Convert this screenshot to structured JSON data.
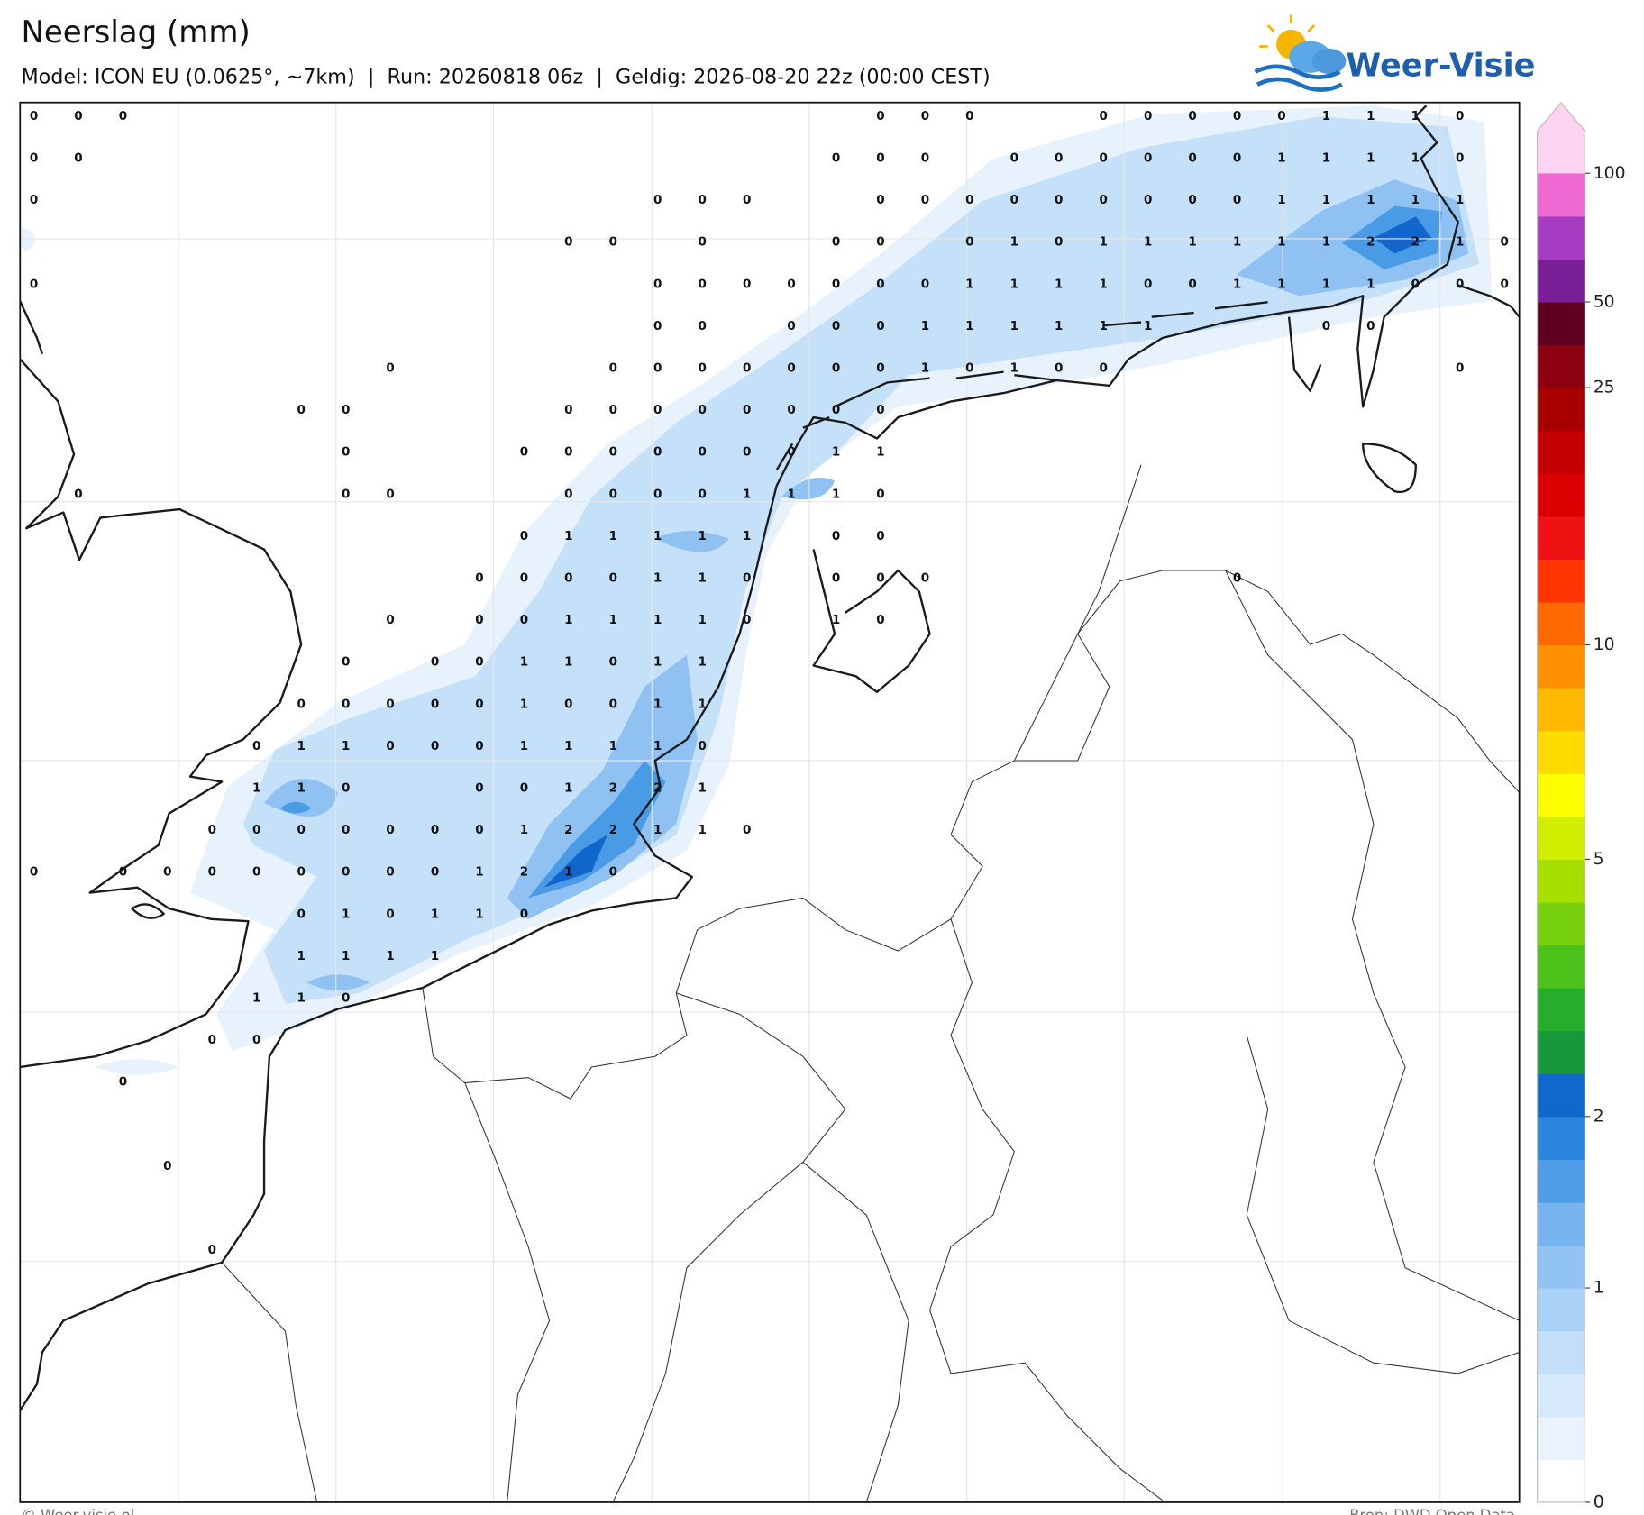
{
  "header": {
    "title": "Neerslag (mm)",
    "subtitle": "Model: ICON EU (0.0625°, ~7km)  |  Run: 20260818 06z  |  Geldig: 2026-08-20 22z (00:00 CEST)",
    "logo": "Weer-Visie"
  },
  "map": {
    "grid_values": [
      [
        0,
        0,
        0,
        null,
        null,
        null,
        null,
        null,
        null,
        null,
        null,
        null,
        null,
        null,
        null,
        null,
        null,
        null,
        null,
        0,
        0,
        0,
        null,
        null,
        0,
        0,
        0,
        0,
        0,
        1,
        1,
        1,
        0,
        null
      ],
      [
        0,
        0,
        null,
        null,
        null,
        null,
        null,
        null,
        null,
        null,
        null,
        null,
        null,
        null,
        null,
        null,
        null,
        null,
        0,
        0,
        0,
        null,
        0,
        0,
        0,
        0,
        0,
        0,
        1,
        1,
        1,
        1,
        0,
        null
      ],
      [
        0,
        null,
        null,
        null,
        null,
        null,
        null,
        null,
        null,
        null,
        null,
        null,
        null,
        null,
        0,
        0,
        0,
        null,
        null,
        0,
        0,
        0,
        0,
        0,
        0,
        0,
        0,
        0,
        1,
        1,
        1,
        1,
        1,
        null
      ],
      [
        null,
        null,
        null,
        null,
        null,
        null,
        null,
        null,
        null,
        null,
        null,
        null,
        0,
        0,
        null,
        0,
        null,
        null,
        0,
        0,
        null,
        0,
        1,
        0,
        1,
        1,
        1,
        1,
        1,
        1,
        2,
        2,
        1,
        0
      ],
      [
        0,
        null,
        null,
        null,
        null,
        null,
        null,
        null,
        null,
        null,
        null,
        null,
        null,
        null,
        0,
        0,
        0,
        0,
        0,
        0,
        0,
        1,
        1,
        1,
        1,
        0,
        0,
        1,
        1,
        1,
        1,
        0,
        0,
        0
      ],
      [
        null,
        null,
        null,
        null,
        null,
        null,
        null,
        null,
        null,
        null,
        null,
        null,
        null,
        null,
        0,
        0,
        null,
        0,
        0,
        0,
        1,
        1,
        1,
        1,
        1,
        1,
        null,
        null,
        null,
        0,
        0,
        null,
        null,
        null
      ],
      [
        null,
        null,
        null,
        null,
        null,
        null,
        null,
        null,
        0,
        null,
        null,
        null,
        null,
        0,
        0,
        0,
        0,
        0,
        0,
        0,
        1,
        0,
        1,
        0,
        0,
        null,
        null,
        null,
        null,
        null,
        null,
        null,
        0,
        null
      ],
      [
        null,
        null,
        null,
        null,
        null,
        null,
        0,
        0,
        null,
        null,
        null,
        null,
        0,
        0,
        0,
        0,
        0,
        0,
        0,
        0,
        null,
        null,
        null,
        null,
        null,
        null,
        null,
        null,
        null,
        null,
        null,
        null,
        null,
        null
      ],
      [
        null,
        null,
        null,
        null,
        null,
        null,
        null,
        0,
        null,
        null,
        null,
        0,
        0,
        0,
        0,
        0,
        0,
        0,
        1,
        1,
        null,
        null,
        null,
        null,
        null,
        null,
        null,
        null,
        null,
        null,
        null,
        null,
        null,
        null
      ],
      [
        null,
        0,
        null,
        null,
        null,
        null,
        null,
        0,
        0,
        null,
        null,
        null,
        0,
        0,
        0,
        0,
        1,
        1,
        1,
        0,
        null,
        null,
        null,
        null,
        null,
        null,
        null,
        null,
        null,
        null,
        null,
        null,
        null,
        null
      ],
      [
        null,
        null,
        null,
        null,
        null,
        null,
        null,
        null,
        null,
        null,
        null,
        0,
        1,
        1,
        1,
        1,
        1,
        null,
        0,
        0,
        null,
        null,
        null,
        null,
        null,
        null,
        null,
        null,
        null,
        null,
        null,
        null,
        null,
        null
      ],
      [
        null,
        null,
        null,
        null,
        null,
        null,
        null,
        null,
        null,
        null,
        0,
        0,
        0,
        0,
        1,
        1,
        0,
        null,
        0,
        0,
        0,
        null,
        null,
        null,
        null,
        null,
        null,
        0,
        null,
        null,
        null,
        null,
        null,
        null
      ],
      [
        null,
        null,
        null,
        null,
        null,
        null,
        null,
        null,
        0,
        null,
        0,
        0,
        1,
        1,
        1,
        1,
        0,
        null,
        1,
        0,
        null,
        null,
        null,
        null,
        null,
        null,
        null,
        null,
        null,
        null,
        null,
        null,
        null,
        null
      ],
      [
        null,
        null,
        null,
        null,
        null,
        null,
        null,
        0,
        null,
        0,
        0,
        1,
        1,
        0,
        1,
        1,
        null,
        null,
        null,
        null,
        null,
        null,
        null,
        null,
        null,
        null,
        null,
        null,
        null,
        null,
        null,
        null,
        null,
        null
      ],
      [
        null,
        null,
        null,
        null,
        null,
        null,
        0,
        0,
        0,
        0,
        0,
        1,
        0,
        0,
        1,
        1,
        null,
        null,
        null,
        null,
        null,
        null,
        null,
        null,
        null,
        null,
        null,
        null,
        null,
        null,
        null,
        null,
        null,
        null
      ],
      [
        null,
        null,
        null,
        null,
        null,
        0,
        1,
        1,
        0,
        0,
        0,
        1,
        1,
        1,
        1,
        0,
        null,
        null,
        null,
        null,
        null,
        null,
        null,
        null,
        null,
        null,
        null,
        null,
        null,
        null,
        null,
        null,
        null,
        null
      ],
      [
        null,
        null,
        null,
        null,
        null,
        1,
        1,
        0,
        null,
        null,
        0,
        0,
        1,
        2,
        2,
        1,
        null,
        null,
        null,
        null,
        null,
        null,
        null,
        null,
        null,
        null,
        null,
        null,
        null,
        null,
        null,
        null,
        null,
        null
      ],
      [
        null,
        null,
        null,
        null,
        0,
        0,
        0,
        0,
        0,
        0,
        0,
        1,
        2,
        2,
        1,
        1,
        0,
        null,
        null,
        null,
        null,
        null,
        null,
        null,
        null,
        null,
        null,
        null,
        null,
        null,
        null,
        null,
        null,
        null
      ],
      [
        0,
        null,
        0,
        0,
        0,
        0,
        0,
        0,
        0,
        0,
        1,
        2,
        1,
        0,
        null,
        null,
        null,
        null,
        null,
        null,
        null,
        null,
        null,
        null,
        null,
        null,
        null,
        null,
        null,
        null,
        null,
        null,
        null,
        null
      ],
      [
        null,
        null,
        null,
        null,
        null,
        null,
        0,
        1,
        0,
        1,
        1,
        0,
        null,
        null,
        null,
        null,
        null,
        null,
        null,
        null,
        null,
        null,
        null,
        null,
        null,
        null,
        null,
        null,
        null,
        null,
        null,
        null,
        null,
        null
      ],
      [
        null,
        null,
        null,
        null,
        null,
        null,
        1,
        1,
        1,
        1,
        null,
        null,
        null,
        null,
        null,
        null,
        null,
        null,
        null,
        null,
        null,
        null,
        null,
        null,
        null,
        null,
        null,
        null,
        null,
        null,
        null,
        null,
        null,
        null
      ],
      [
        null,
        null,
        null,
        null,
        null,
        1,
        1,
        0,
        null,
        null,
        null,
        null,
        null,
        null,
        null,
        null,
        null,
        null,
        null,
        null,
        null,
        null,
        null,
        null,
        null,
        null,
        null,
        null,
        null,
        null,
        null,
        null,
        null,
        null
      ],
      [
        null,
        null,
        null,
        null,
        0,
        0,
        null,
        null,
        null,
        null,
        null,
        null,
        null,
        null,
        null,
        null,
        null,
        null,
        null,
        null,
        null,
        null,
        null,
        null,
        null,
        null,
        null,
        null,
        null,
        null,
        null,
        null,
        null,
        null
      ],
      [
        null,
        null,
        0,
        null,
        null,
        null,
        null,
        null,
        null,
        null,
        null,
        null,
        null,
        null,
        null,
        null,
        null,
        null,
        null,
        null,
        null,
        null,
        null,
        null,
        null,
        null,
        null,
        null,
        null,
        null,
        null,
        null,
        null,
        null
      ],
      [
        null,
        null,
        null,
        null,
        null,
        null,
        null,
        null,
        null,
        null,
        null,
        null,
        null,
        null,
        null,
        null,
        null,
        null,
        null,
        null,
        null,
        null,
        null,
        null,
        null,
        null,
        null,
        null,
        null,
        null,
        null,
        null,
        null,
        null
      ],
      [
        null,
        null,
        null,
        0,
        null,
        null,
        null,
        null,
        null,
        null,
        null,
        null,
        null,
        null,
        null,
        null,
        null,
        null,
        null,
        null,
        null,
        null,
        null,
        null,
        null,
        null,
        null,
        null,
        null,
        null,
        null,
        null,
        null,
        null
      ],
      [
        null,
        null,
        null,
        null,
        null,
        null,
        null,
        null,
        null,
        null,
        null,
        null,
        null,
        null,
        null,
        null,
        null,
        null,
        null,
        null,
        null,
        null,
        null,
        null,
        null,
        null,
        null,
        null,
        null,
        null,
        null,
        null,
        null,
        null
      ],
      [
        null,
        null,
        null,
        null,
        0,
        null,
        null,
        null,
        null,
        null,
        null,
        null,
        null,
        null,
        null,
        null,
        null,
        null,
        null,
        null,
        null,
        null,
        null,
        null,
        null,
        null,
        null,
        null,
        null,
        null,
        null,
        null,
        null,
        null
      ]
    ]
  },
  "colorbar": {
    "ticks": [
      0,
      1,
      2,
      5,
      10,
      25,
      50,
      100
    ]
  },
  "footer": {
    "copyright": "© Weer-visie.nl",
    "source": "Bron: DWD Open Data"
  }
}
